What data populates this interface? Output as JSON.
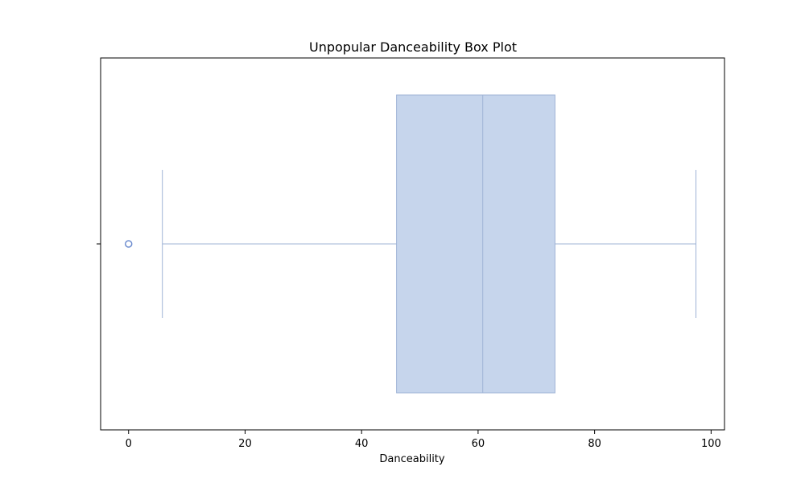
{
  "chart_data": {
    "type": "box",
    "title": "Unpopular Danceability Box Plot",
    "xlabel": "Danceability",
    "ylabel": "",
    "xlim": [
      -4.8,
      102.3
    ],
    "xticks": [
      0,
      20,
      40,
      60,
      80,
      100
    ],
    "xtick_labels": [
      "0",
      "20",
      "40",
      "60",
      "80",
      "100"
    ],
    "box": {
      "whisker_low": 5.8,
      "q1": 46.0,
      "median": 60.8,
      "q3": 73.2,
      "whisker_high": 97.4
    },
    "outliers": [
      0.0
    ],
    "grid": false,
    "colors": {
      "box_fill": "#c6d5ec",
      "box_edge": "#9fb3d6",
      "whisker": "#9fb3d6",
      "outlier": "#6f8ed0"
    }
  }
}
